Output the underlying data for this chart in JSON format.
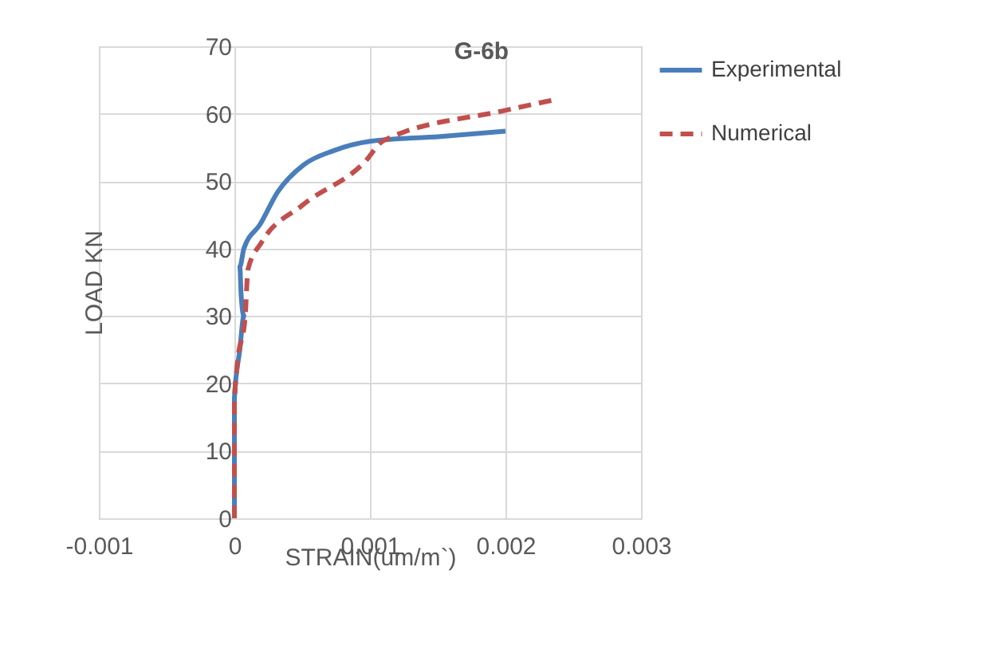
{
  "chart_data": {
    "type": "line",
    "title": "G-6b",
    "xlabel": "STRAIN(um/m`)",
    "ylabel": "LOAD KN",
    "xlim": [
      -0.001,
      0.003
    ],
    "xticks": [
      -0.001,
      0,
      0.001,
      0.002,
      0.003
    ],
    "ylim": [
      0,
      70
    ],
    "yticks": [
      0,
      10,
      20,
      30,
      40,
      50,
      60,
      70
    ],
    "grid": true,
    "legend": "right",
    "marker": "none",
    "series": [
      {
        "name": "Experimental",
        "color": "#4a7ebb",
        "line_style": "solid",
        "x": [
          0,
          0,
          0,
          4e-05,
          7e-05,
          5e-05,
          4e-05,
          7e-05,
          0.00019,
          0.00032,
          0.00051,
          0.00073,
          0.001,
          0.00152,
          0.002
        ],
        "values": [
          0,
          10,
          17.8,
          25,
          30,
          33,
          37.3,
          40,
          43.6,
          48.4,
          52.4,
          54.5,
          55.9,
          56.6,
          57.4
        ]
      },
      {
        "name": "Numerical",
        "color": "#c0504d",
        "line_style": "dashed",
        "x": [
          0,
          0,
          2e-05,
          8e-05,
          0.0001,
          0.0002,
          0.0005,
          0.00096,
          0.0011,
          0.002,
          0.00237
        ],
        "values": [
          0,
          17,
          22.6,
          30,
          36.9,
          40.9,
          46.4,
          52.8,
          56,
          60.5,
          62.1
        ]
      }
    ]
  }
}
